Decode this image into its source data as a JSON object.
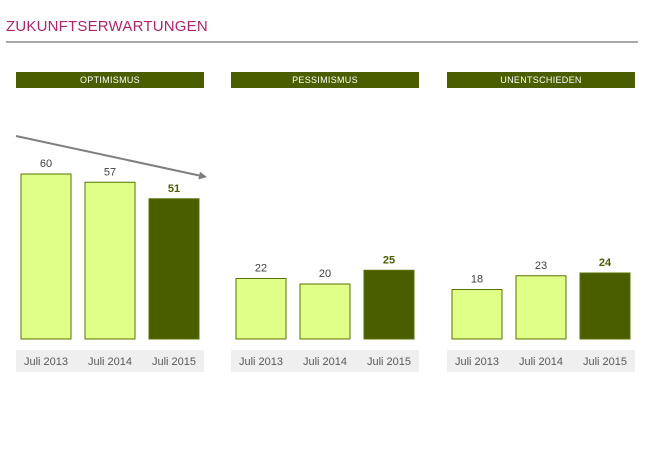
{
  "page": {
    "title": "ZUKUNFTSERWARTUNGEN"
  },
  "colors": {
    "title": "#b0246e",
    "header_bg": "#4a5e00",
    "bar_light": "#e0ff88",
    "bar_dark": "#4a5e00",
    "bar_border": "#5a7300",
    "trend_arrow": "#7f7f7f"
  },
  "chart_data": [
    {
      "type": "bar",
      "title": "OPTIMISMUS",
      "categories": [
        "Juli 2013",
        "Juli 2014",
        "Juli 2015"
      ],
      "values": [
        60,
        57,
        51
      ],
      "highlight_last": true,
      "trend_arrow": "down"
    },
    {
      "type": "bar",
      "title": "PESSIMISMUS",
      "categories": [
        "Juli 2013",
        "Juli 2014",
        "Juli 2015"
      ],
      "values": [
        22,
        20,
        25
      ],
      "highlight_last": true
    },
    {
      "type": "bar",
      "title": "UNENTSCHIEDEN",
      "categories": [
        "Juli 2013",
        "Juli 2014",
        "Juli 2015"
      ],
      "values": [
        18,
        23,
        24
      ],
      "highlight_last": true
    }
  ]
}
